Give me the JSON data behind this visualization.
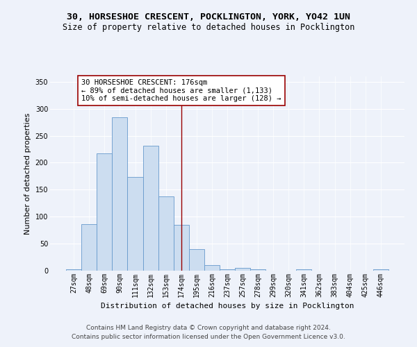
{
  "title_line1": "30, HORSESHOE CRESCENT, POCKLINGTON, YORK, YO42 1UN",
  "title_line2": "Size of property relative to detached houses in Pocklington",
  "xlabel": "Distribution of detached houses by size in Pocklington",
  "ylabel": "Number of detached properties",
  "bar_color": "#ccddf0",
  "bar_edge_color": "#6699cc",
  "categories": [
    "27sqm",
    "48sqm",
    "69sqm",
    "90sqm",
    "111sqm",
    "132sqm",
    "153sqm",
    "174sqm",
    "195sqm",
    "216sqm",
    "237sqm",
    "257sqm",
    "278sqm",
    "299sqm",
    "320sqm",
    "341sqm",
    "362sqm",
    "383sqm",
    "404sqm",
    "425sqm",
    "446sqm"
  ],
  "values": [
    2,
    86,
    217,
    284,
    174,
    232,
    138,
    85,
    40,
    10,
    2,
    5,
    2,
    0,
    0,
    2,
    0,
    0,
    0,
    0,
    2
  ],
  "vline_x_index": 7,
  "vline_color": "#990000",
  "annotation_line1": "30 HORSESHOE CRESCENT: 176sqm",
  "annotation_line2": "← 89% of detached houses are smaller (1,133)",
  "annotation_line3": "10% of semi-detached houses are larger (128) →",
  "ylim": [
    0,
    360
  ],
  "yticks": [
    0,
    50,
    100,
    150,
    200,
    250,
    300,
    350
  ],
  "footer_line1": "Contains HM Land Registry data © Crown copyright and database right 2024.",
  "footer_line2": "Contains public sector information licensed under the Open Government Licence v3.0.",
  "bg_color": "#eef2fa",
  "grid_color": "#ffffff",
  "title_fontsize": 9.5,
  "subtitle_fontsize": 8.5,
  "ylabel_fontsize": 8,
  "xlabel_fontsize": 8,
  "tick_fontsize": 7,
  "annotation_fontsize": 7.5,
  "footer_fontsize": 6.5
}
